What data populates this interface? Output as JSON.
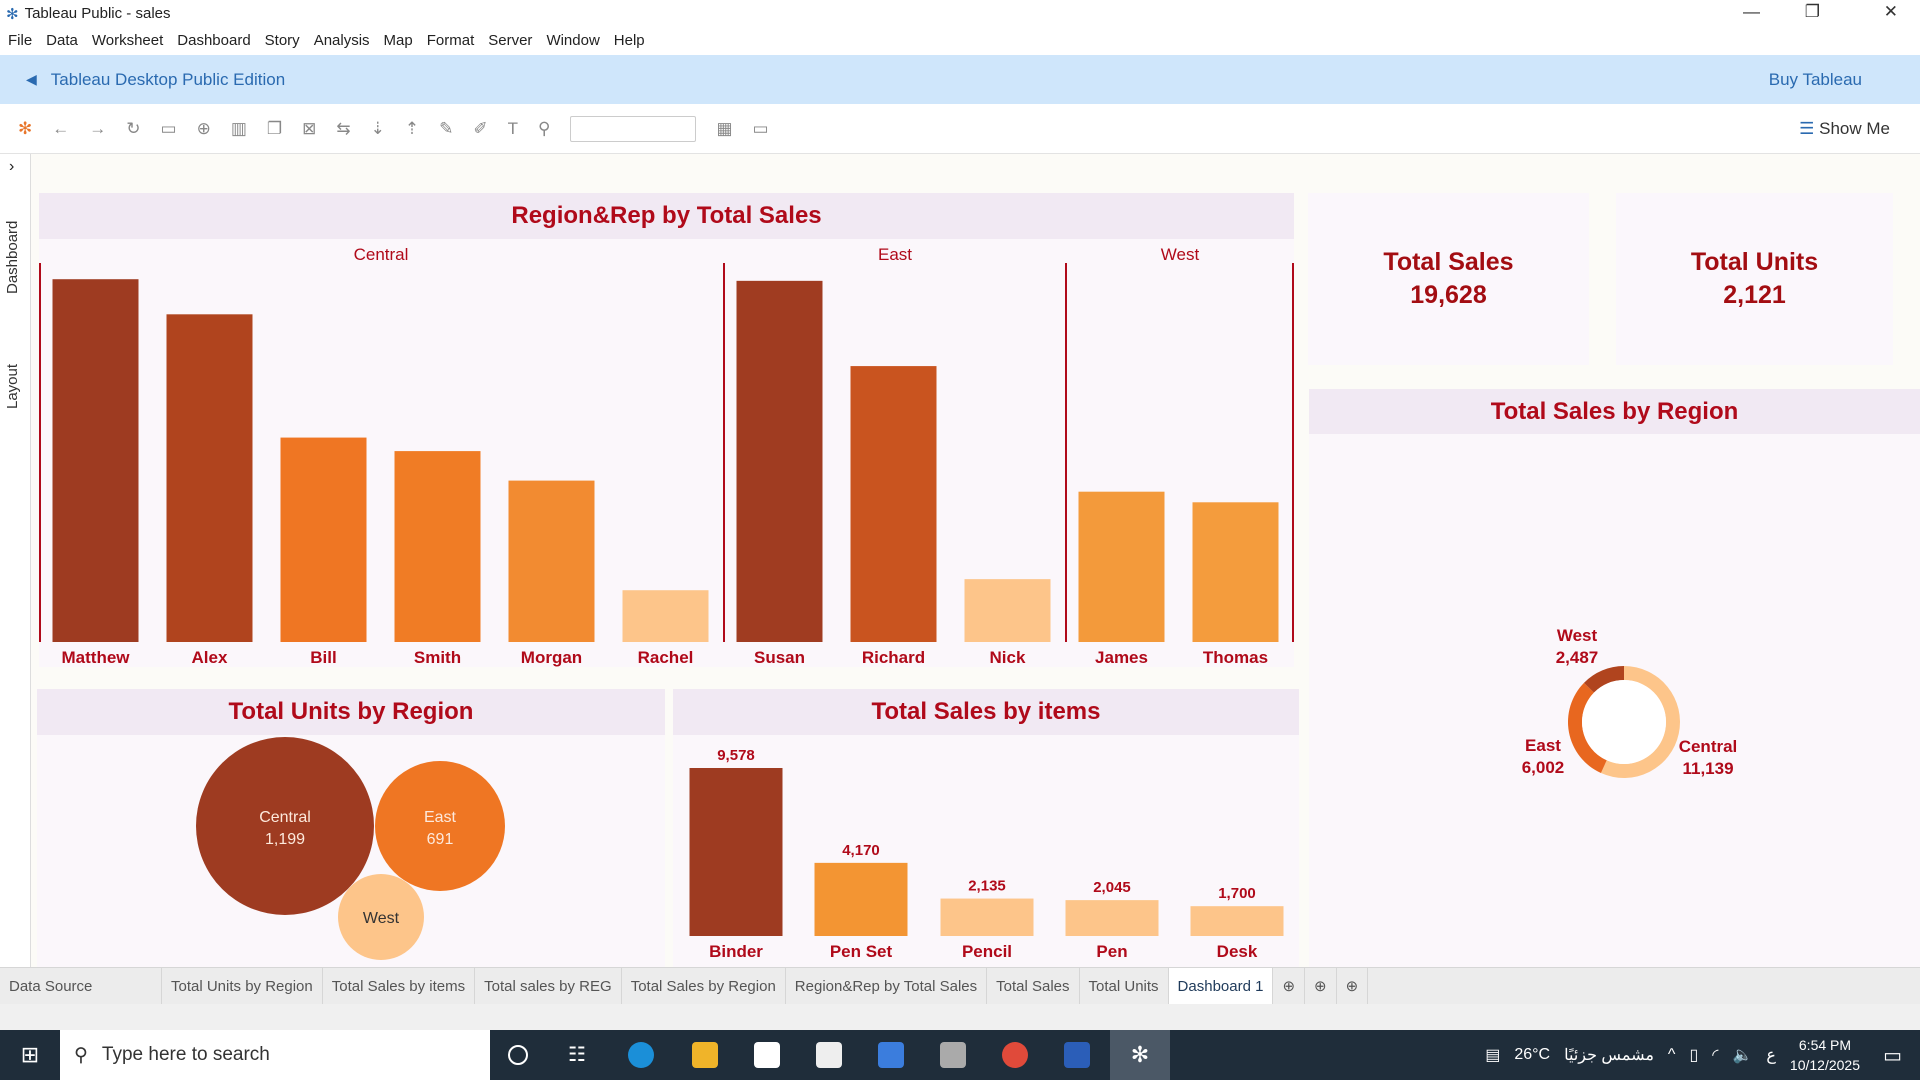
{
  "window": {
    "title": "Tableau Public - sales",
    "minimize": "—",
    "restore": "❐",
    "close": "✕"
  },
  "menu": [
    "File",
    "Data",
    "Worksheet",
    "Dashboard",
    "Story",
    "Analysis",
    "Map",
    "Format",
    "Server",
    "Window",
    "Help"
  ],
  "banner": {
    "label": "Tableau Desktop Public Edition",
    "buy": "Buy Tableau"
  },
  "toolbar": {
    "show_me": "Show Me",
    "icons": [
      "tableau-logo",
      "undo",
      "redo",
      "redo-repeat",
      "save",
      "add-datasource",
      "new-worksheet",
      "duplicate",
      "clear",
      "swap",
      "sort-asc",
      "sort-desc",
      "highlight",
      "annotate",
      "label",
      "pin",
      "fit-select",
      "show-cards",
      "presentation"
    ]
  },
  "side_tabs": {
    "dashboard": "Dashboard",
    "layout": "Layout",
    "collapse": "›"
  },
  "kpis": [
    {
      "label": "Total Sales",
      "value": "19,628"
    },
    {
      "label": "Total Units",
      "value": "2,121"
    }
  ],
  "colors": {
    "title": "#b00a1a",
    "dark": "#9e3b21",
    "mid": "#ef7623",
    "light": "#fdc58a",
    "panel": "#fbf7fb",
    "title_band": "#f1e9f3"
  },
  "chart_data": [
    {
      "type": "bar",
      "title": "Region&Rep by Total Sales",
      "groups": [
        "Central",
        "East",
        "West"
      ],
      "categories": [
        "Matthew",
        "Alex",
        "Bill",
        "Smith",
        "Morgan",
        "Rachel",
        "Susan",
        "Richard",
        "Nick",
        "James",
        "Thomas"
      ],
      "group_of": [
        "Central",
        "Central",
        "Central",
        "Central",
        "Central",
        "Central",
        "East",
        "East",
        "East",
        "West",
        "West"
      ],
      "values": [
        3111,
        2810,
        1753,
        1637,
        1384,
        444,
        3097,
        2366,
        539,
        1289,
        1198
      ],
      "colors": [
        "#9e3b21",
        "#b0441e",
        "#ef7623",
        "#f07c25",
        "#f28b31",
        "#fdc58a",
        "#a03c21",
        "#c9541f",
        "#fdc58a",
        "#f39a3b",
        "#f49c3d"
      ],
      "ylim": [
        0,
        3250
      ],
      "grid": false
    },
    {
      "type": "bubble",
      "title": "Total Units by Region",
      "categories": [
        "Central",
        "East",
        "West"
      ],
      "values": [
        1199,
        691,
        231
      ],
      "labels": [
        "1,199",
        "691",
        ""
      ],
      "colors": [
        "#9e3b21",
        "#ef7623",
        "#fdc58a"
      ]
    },
    {
      "type": "bar",
      "title": "Total Sales by items",
      "categories": [
        "Binder",
        "Pen Set",
        "Pencil",
        "Pen",
        "Desk"
      ],
      "values": [
        9578,
        4170,
        2135,
        2045,
        1700
      ],
      "labels": [
        "9,578",
        "4,170",
        "2,135",
        "2,045",
        "1,700"
      ],
      "colors": [
        "#9e3b21",
        "#f39533",
        "#fdc58a",
        "#fdc58a",
        "#fdc58a"
      ],
      "ylim": [
        0,
        9578
      ]
    },
    {
      "type": "pie",
      "title": "Total Sales by Region",
      "donut": true,
      "categories": [
        "Central",
        "East",
        "West"
      ],
      "values": [
        11139,
        6002,
        2487
      ],
      "labels": [
        "11,139",
        "6,002",
        "2,487"
      ],
      "colors": [
        "#fdc58a",
        "#e8671f",
        "#b0441e"
      ]
    }
  ],
  "sheet_tabs": [
    "Data Source",
    "Total Units by Region",
    "Total Sales by items",
    "Total sales by REG",
    "Total Sales by Region",
    "Region&Rep by Total Sales",
    "Total Sales",
    "Total Units",
    "Dashboard 1"
  ],
  "taskbar": {
    "search_placeholder": "Type here to search",
    "weather": "26°C",
    "weather_text": "مشمس جزئيًا",
    "lang": "ع",
    "time": "6:54 PM",
    "date": "10/12/2025"
  }
}
